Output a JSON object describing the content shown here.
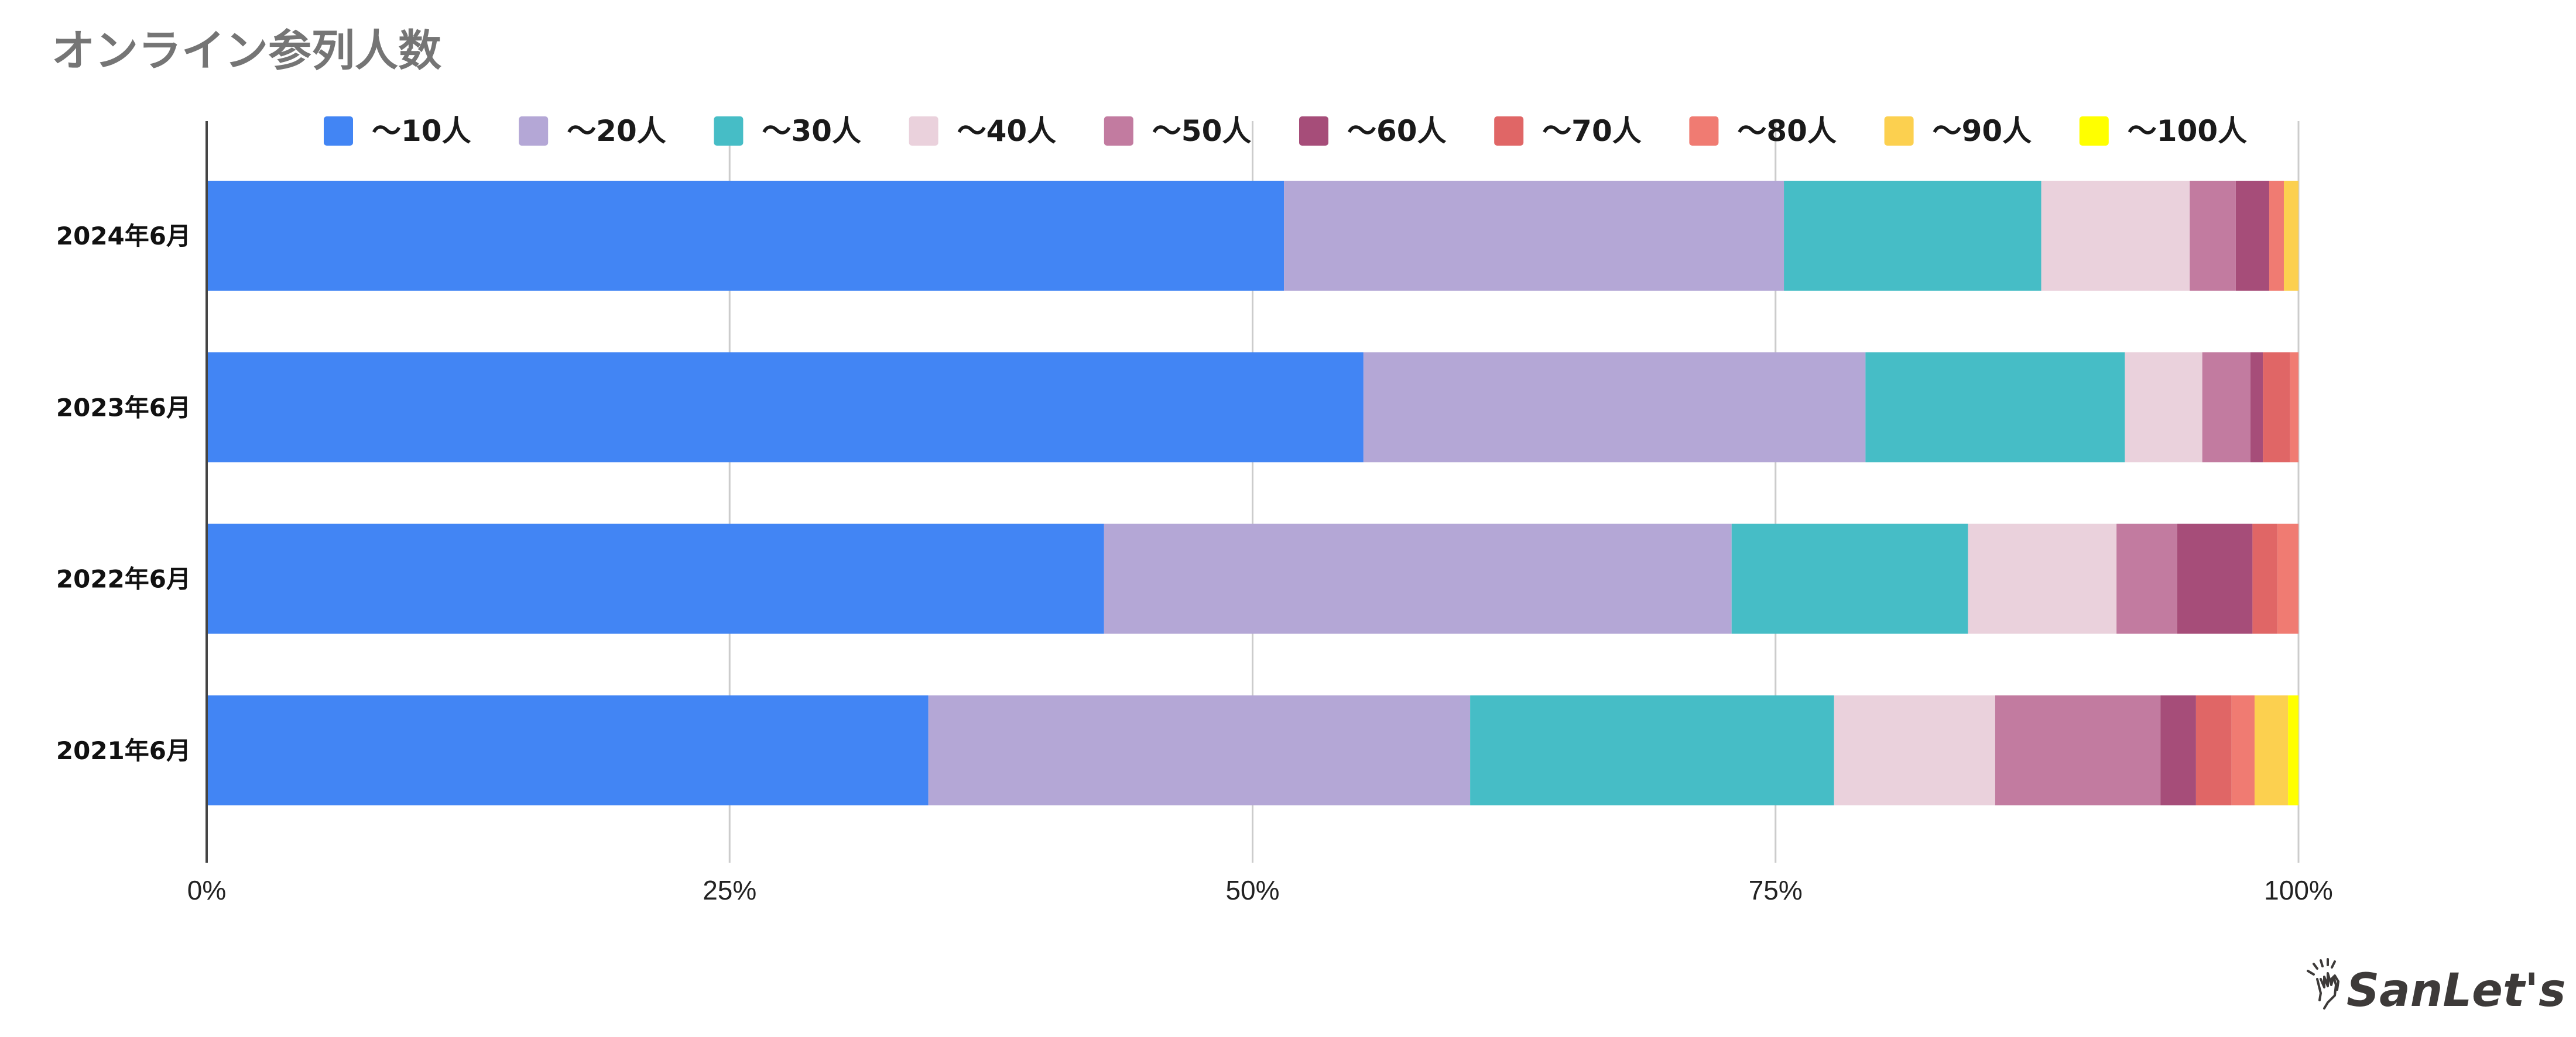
{
  "chart_data": {
    "type": "bar",
    "orientation": "horizontal",
    "stacked": "percent",
    "title": "オンライン参列人数",
    "xlabel": "",
    "ylabel": "",
    "xlim": [
      0,
      100
    ],
    "x_ticks": [
      "0%",
      "25%",
      "50%",
      "75%",
      "100%"
    ],
    "grid": true,
    "legend_position": "top",
    "categories": [
      "2024年6月",
      "2023年6月",
      "2022年6月",
      "2021年6月"
    ],
    "series": [
      {
        "name": "〜10人",
        "color": "#4285f4",
        "values": [
          51.5,
          55.3,
          42.9,
          34.5
        ]
      },
      {
        "name": "〜20人",
        "color": "#b4a7d6",
        "values": [
          23.9,
          24.0,
          30.0,
          25.9
        ]
      },
      {
        "name": "〜30人",
        "color": "#46bdc6",
        "values": [
          12.3,
          12.4,
          11.3,
          17.4
        ]
      },
      {
        "name": "〜40人",
        "color": "#ead1dc",
        "values": [
          7.1,
          3.7,
          7.1,
          7.7
        ]
      },
      {
        "name": "〜50人",
        "color": "#c27ba0",
        "values": [
          2.2,
          2.3,
          2.9,
          7.9
        ]
      },
      {
        "name": "〜60人",
        "color": "#a64d79",
        "values": [
          1.6,
          0.6,
          3.6,
          1.7
        ]
      },
      {
        "name": "〜70人",
        "color": "#e06666",
        "values": [
          0,
          1.3,
          1.2,
          1.7
        ]
      },
      {
        "name": "〜80人",
        "color": "#f07b72",
        "values": [
          0.7,
          0.4,
          1.0,
          1.1
        ]
      },
      {
        "name": "〜90人",
        "color": "#fcd04f",
        "values": [
          0.7,
          0,
          0,
          1.6
        ]
      },
      {
        "name": "〜100人",
        "color": "#ffff00",
        "values": [
          0,
          0,
          0,
          0.5
        ]
      }
    ]
  },
  "branding": {
    "logo_text": "SanLet's",
    "logo_icon": "high-five-hands-icon"
  }
}
